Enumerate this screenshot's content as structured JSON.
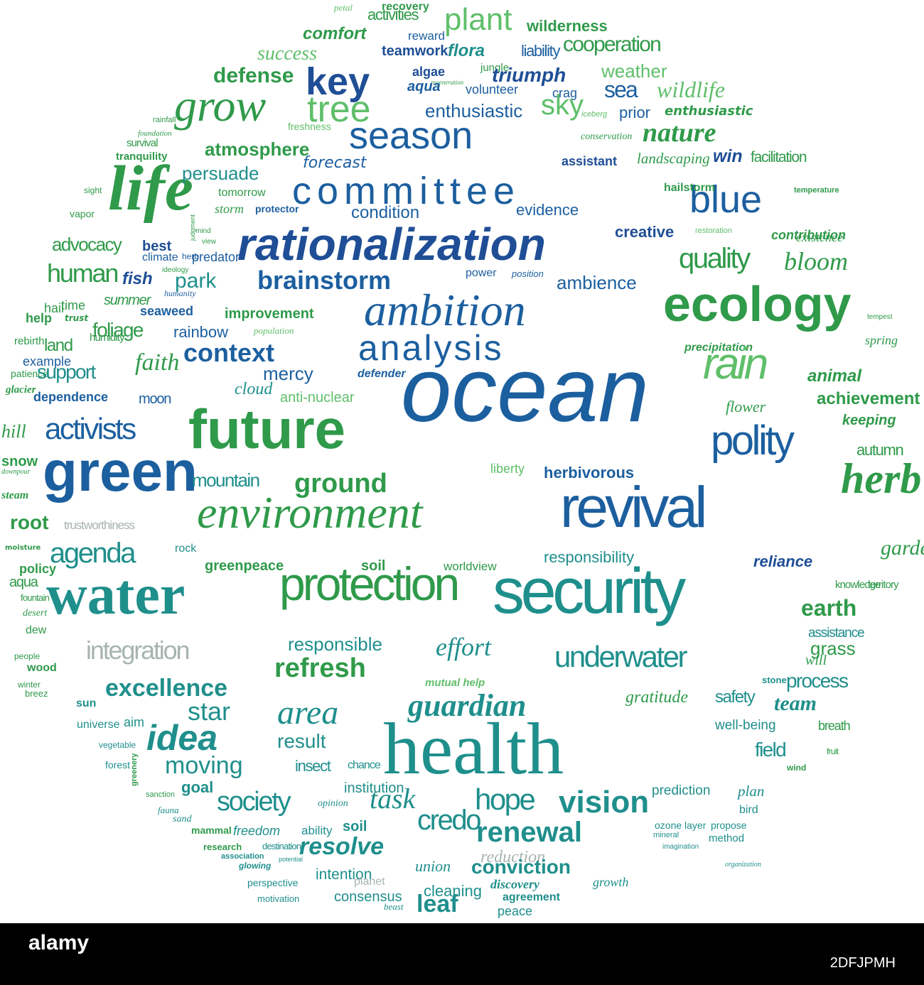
{
  "footer": {
    "watermark": "alamy",
    "image_id": "2DFJPMH"
  },
  "colors": {
    "dark_blue": "#1f4e96",
    "blue": "#1c5f9f",
    "mid_blue": "#237c9c",
    "teal": "#1f8f8c",
    "green": "#2f9a4a",
    "bright_green": "#2db34a",
    "light_green": "#5fbf6a",
    "gray": "#a7b4b0"
  },
  "words": [
    {
      "t": "petal",
      "c": "light_green",
      "s": 13,
      "it": 1
    },
    {
      "t": "recovery",
      "c": "green",
      "s": 16,
      "w": 1
    },
    {
      "t": "activities",
      "c": "green",
      "s": 22
    },
    {
      "t": "plant",
      "c": "light_green",
      "s": 44
    },
    {
      "t": "wilderness",
      "c": "green",
      "s": 22,
      "w": 1
    },
    {
      "t": "comfort",
      "c": "green",
      "s": 24,
      "w": 1,
      "it": 1
    },
    {
      "t": "reward",
      "c": "blue",
      "s": 17
    },
    {
      "t": "success",
      "c": "light_green",
      "s": 28,
      "it": 1
    },
    {
      "t": "teamwork",
      "c": "dark_blue",
      "s": 20,
      "w": 1
    },
    {
      "t": "flora",
      "c": "teal",
      "s": 24,
      "w": 1,
      "it": 1
    },
    {
      "t": "liability",
      "c": "blue",
      "s": 22
    },
    {
      "t": "cooperation",
      "c": "green",
      "s": 30
    },
    {
      "t": "jungle",
      "c": "green",
      "s": 15
    },
    {
      "t": "defense",
      "c": "green",
      "s": 30,
      "w": 1
    },
    {
      "t": "key",
      "c": "dark_blue",
      "s": 54,
      "w": 1
    },
    {
      "t": "algae",
      "c": "dark_blue",
      "s": 18,
      "w": 1
    },
    {
      "t": "regeneration",
      "c": "green",
      "s": 9,
      "it": 1
    },
    {
      "t": "aqua",
      "c": "blue",
      "s": 20,
      "w": 1,
      "it": 1
    },
    {
      "t": "triumph",
      "c": "dark_blue",
      "s": 28,
      "w": 1,
      "it": 1
    },
    {
      "t": "weather",
      "c": "light_green",
      "s": 26
    },
    {
      "t": "volunteer",
      "c": "blue",
      "s": 18
    },
    {
      "t": "crag",
      "c": "blue",
      "s": 18
    },
    {
      "t": "sea",
      "c": "blue",
      "s": 32
    },
    {
      "t": "wildlife",
      "c": "light_green",
      "s": 32,
      "it": 1
    },
    {
      "t": "grow",
      "c": "green",
      "s": 64,
      "it": 1
    },
    {
      "t": "tree",
      "c": "light_green",
      "s": 52
    },
    {
      "t": "enthusiastic",
      "c": "blue",
      "s": 26
    },
    {
      "t": "sky",
      "c": "light_green",
      "s": 40
    },
    {
      "t": "iceberg",
      "c": "light_green",
      "s": 11,
      "it": 1
    },
    {
      "t": "prior",
      "c": "blue",
      "s": 22
    },
    {
      "t": "enthusiastic",
      "c": "green",
      "s": 18,
      "w": 1,
      "it": 1
    },
    {
      "t": "rainfall",
      "c": "green",
      "s": 11
    },
    {
      "t": "freshness",
      "c": "light_green",
      "s": 14
    },
    {
      "t": "foundation",
      "c": "green",
      "s": 11,
      "it": 1
    },
    {
      "t": "survival",
      "c": "green",
      "s": 15
    },
    {
      "t": "season",
      "c": "blue",
      "s": 54
    },
    {
      "t": "conservation",
      "c": "green",
      "s": 14,
      "it": 1
    },
    {
      "t": "nature",
      "c": "green",
      "s": 38,
      "w": 1,
      "it": 1
    },
    {
      "t": "tranquility",
      "c": "green",
      "s": 15,
      "w": 1
    },
    {
      "t": "atmosphere",
      "c": "green",
      "s": 26,
      "w": 1
    },
    {
      "t": "assistant",
      "c": "dark_blue",
      "s": 18,
      "w": 1
    },
    {
      "t": "landscaping",
      "c": "green",
      "s": 21,
      "it": 1
    },
    {
      "t": "win",
      "c": "dark_blue",
      "s": 25,
      "w": 1,
      "it": 1
    },
    {
      "t": "facilitation",
      "c": "green",
      "s": 21
    },
    {
      "t": "forecast",
      "c": "blue",
      "s": 22,
      "it": 1
    },
    {
      "t": "life",
      "c": "green",
      "s": 90,
      "w": 1,
      "it": 1
    },
    {
      "t": "persuade",
      "c": "teal",
      "s": 26
    },
    {
      "t": "committee",
      "c": "blue",
      "s": 54,
      "ls": 8
    },
    {
      "t": "blue",
      "c": "blue",
      "s": 54
    },
    {
      "t": "temperature",
      "c": "green",
      "s": 11,
      "w": 1
    },
    {
      "t": "hailstorm",
      "c": "green",
      "s": 16,
      "w": 1
    },
    {
      "t": "sight",
      "c": "green",
      "s": 12
    },
    {
      "t": "tomorrow",
      "c": "green",
      "s": 16
    },
    {
      "t": "storm",
      "c": "green",
      "s": 18,
      "it": 1
    },
    {
      "t": "vapor",
      "c": "green",
      "s": 14
    },
    {
      "t": "protector",
      "c": "blue",
      "s": 14,
      "w": 1
    },
    {
      "t": "condition",
      "c": "blue",
      "s": 24
    },
    {
      "t": "evidence",
      "c": "blue",
      "s": 22
    },
    {
      "t": "creative",
      "c": "dark_blue",
      "s": 22,
      "w": 1
    },
    {
      "t": "existence",
      "c": "green",
      "s": 18,
      "it": 1
    },
    {
      "t": "mind",
      "c": "green",
      "s": 10
    },
    {
      "t": "restoration",
      "c": "light_green",
      "s": 11
    },
    {
      "t": "contribution",
      "c": "green",
      "s": 18,
      "w": 1,
      "it": 1
    },
    {
      "t": "advocacy",
      "c": "green",
      "s": 26
    },
    {
      "t": "rationalization",
      "c": "dark_blue",
      "s": 64,
      "w": 1,
      "it": 1
    },
    {
      "t": "judgment",
      "c": "green",
      "s": 9
    },
    {
      "t": "best",
      "c": "dark_blue",
      "s": 20,
      "w": 1
    },
    {
      "t": "view",
      "c": "green",
      "s": 10
    },
    {
      "t": "climate",
      "c": "blue",
      "s": 16
    },
    {
      "t": "herb",
      "c": "blue",
      "s": 12
    },
    {
      "t": "predator",
      "c": "blue",
      "s": 18
    },
    {
      "t": "quality",
      "c": "green",
      "s": 40
    },
    {
      "t": "bloom",
      "c": "green",
      "s": 36,
      "it": 1
    },
    {
      "t": "human",
      "c": "green",
      "s": 36
    },
    {
      "t": "ideology",
      "c": "green",
      "s": 10
    },
    {
      "t": "fish",
      "c": "dark_blue",
      "s": 24,
      "w": 1,
      "it": 1
    },
    {
      "t": "park",
      "c": "teal",
      "s": 30
    },
    {
      "t": "brainstorm",
      "c": "blue",
      "s": 36,
      "w": 1
    },
    {
      "t": "power",
      "c": "blue",
      "s": 16
    },
    {
      "t": "position",
      "c": "blue",
      "s": 13,
      "it": 1
    },
    {
      "t": "ambience",
      "c": "blue",
      "s": 26
    },
    {
      "t": "humanity",
      "c": "blue",
      "s": 12,
      "it": 1
    },
    {
      "t": "hail",
      "c": "green",
      "s": 18
    },
    {
      "t": "time",
      "c": "green",
      "s": 18
    },
    {
      "t": "summer",
      "c": "green",
      "s": 20,
      "it": 1
    },
    {
      "t": "seaweed",
      "c": "blue",
      "s": 18,
      "w": 1
    },
    {
      "t": "improvement",
      "c": "green",
      "s": 20,
      "w": 1
    },
    {
      "t": "ambition",
      "c": "blue",
      "s": 64,
      "it": 1
    },
    {
      "t": "ecology",
      "c": "green",
      "s": 70,
      "w": 1
    },
    {
      "t": "tempest",
      "c": "green",
      "s": 10
    },
    {
      "t": "help",
      "c": "green",
      "s": 18,
      "w": 1
    },
    {
      "t": "trust",
      "c": "green",
      "s": 12,
      "w": 1,
      "it": 1
    },
    {
      "t": "foliage",
      "c": "green",
      "s": 28
    },
    {
      "t": "rainbow",
      "c": "blue",
      "s": 22
    },
    {
      "t": "population",
      "c": "light_green",
      "s": 13,
      "it": 1
    },
    {
      "t": "rebirth",
      "c": "green",
      "s": 15
    },
    {
      "t": "land",
      "c": "green",
      "s": 24
    },
    {
      "t": "humidity",
      "c": "green",
      "s": 15
    },
    {
      "t": "context",
      "c": "blue",
      "s": 36,
      "w": 1
    },
    {
      "t": "analysis",
      "c": "blue",
      "s": 50,
      "ls": 3
    },
    {
      "t": "precipitation",
      "c": "green",
      "s": 16,
      "w": 1,
      "it": 1
    },
    {
      "t": "spring",
      "c": "green",
      "s": 18,
      "it": 1
    },
    {
      "t": "example",
      "c": "blue",
      "s": 18
    },
    {
      "t": "faith",
      "c": "green",
      "s": 34,
      "it": 1
    },
    {
      "t": "patience",
      "c": "green",
      "s": 14
    },
    {
      "t": "support",
      "c": "teal",
      "s": 28
    },
    {
      "t": "mercy",
      "c": "blue",
      "s": 26
    },
    {
      "t": "defender",
      "c": "blue",
      "s": 16,
      "w": 1,
      "it": 1
    },
    {
      "t": "ocean",
      "c": "blue",
      "s": 128,
      "it": 1
    },
    {
      "t": "rain",
      "c": "light_green",
      "s": 62,
      "it": 1
    },
    {
      "t": "animal",
      "c": "green",
      "s": 24,
      "w": 1,
      "it": 1
    },
    {
      "t": "glacier",
      "c": "green",
      "s": 15,
      "w": 1,
      "it": 1
    },
    {
      "t": "dependence",
      "c": "blue",
      "s": 18,
      "w": 1
    },
    {
      "t": "cloud",
      "c": "teal",
      "s": 24,
      "it": 1
    },
    {
      "t": "moon",
      "c": "blue",
      "s": 20
    },
    {
      "t": "anti-nuclear",
      "c": "light_green",
      "s": 20
    },
    {
      "t": "achievement",
      "c": "green",
      "s": 24,
      "w": 1
    },
    {
      "t": "flower",
      "c": "green",
      "s": 22,
      "it": 1
    },
    {
      "t": "keeping",
      "c": "green",
      "s": 20,
      "w": 1,
      "it": 1
    },
    {
      "t": "activists",
      "c": "blue",
      "s": 42
    },
    {
      "t": "future",
      "c": "green",
      "s": 78,
      "w": 1
    },
    {
      "t": "hill",
      "c": "green",
      "s": 26,
      "it": 1
    },
    {
      "t": "polity",
      "c": "blue",
      "s": 58
    },
    {
      "t": "autumn",
      "c": "green",
      "s": 22
    },
    {
      "t": "snow",
      "c": "green",
      "s": 20,
      "w": 1
    },
    {
      "t": "green",
      "c": "blue",
      "s": 80,
      "w": 1
    },
    {
      "t": "liberty",
      "c": "light_green",
      "s": 18
    },
    {
      "t": "herbivorous",
      "c": "blue",
      "s": 22,
      "w": 1
    },
    {
      "t": "downpour",
      "c": "green",
      "s": 10,
      "it": 1
    },
    {
      "t": "mountain",
      "c": "teal",
      "s": 26
    },
    {
      "t": "ground",
      "c": "green",
      "s": 38,
      "w": 1
    },
    {
      "t": "herb",
      "c": "green",
      "s": 60,
      "w": 1,
      "it": 1
    },
    {
      "t": "steam",
      "c": "green",
      "s": 16,
      "w": 1,
      "it": 1
    },
    {
      "t": "environment",
      "c": "green",
      "s": 64,
      "it": 1
    },
    {
      "t": "revival",
      "c": "blue",
      "s": 82
    },
    {
      "t": "root",
      "c": "green",
      "s": 28,
      "w": 1
    },
    {
      "t": "trustworthiness",
      "c": "gray",
      "s": 17
    },
    {
      "t": "moisture",
      "c": "green",
      "s": 10,
      "w": 1
    },
    {
      "t": "agenda",
      "c": "teal",
      "s": 40
    },
    {
      "t": "rock",
      "c": "teal",
      "s": 16
    },
    {
      "t": "responsibility",
      "c": "teal",
      "s": 22
    },
    {
      "t": "garden",
      "c": "green",
      "s": 30,
      "it": 1
    },
    {
      "t": "policy",
      "c": "green",
      "s": 18,
      "w": 1
    },
    {
      "t": "greenpeace",
      "c": "green",
      "s": 20,
      "w": 1
    },
    {
      "t": "soil",
      "c": "green",
      "s": 20,
      "w": 1
    },
    {
      "t": "worldview",
      "c": "green",
      "s": 17
    },
    {
      "t": "reliance",
      "c": "dark_blue",
      "s": 22,
      "w": 1,
      "it": 1
    },
    {
      "t": "aqua",
      "c": "green",
      "s": 20
    },
    {
      "t": "water",
      "c": "teal",
      "s": 80,
      "w": 1
    },
    {
      "t": "protection",
      "c": "green",
      "s": 66
    },
    {
      "t": "security",
      "c": "teal",
      "s": 90
    },
    {
      "t": "knowledge",
      "c": "green",
      "s": 15
    },
    {
      "t": "territory",
      "c": "green",
      "s": 15
    },
    {
      "t": "fountain",
      "c": "green",
      "s": 13
    },
    {
      "t": "desert",
      "c": "green",
      "s": 14,
      "it": 1
    },
    {
      "t": "earth",
      "c": "green",
      "s": 32,
      "w": 1
    },
    {
      "t": "assistance",
      "c": "teal",
      "s": 19
    },
    {
      "t": "dew",
      "c": "green",
      "s": 16
    },
    {
      "t": "integration",
      "c": "gray",
      "s": 36
    },
    {
      "t": "responsible",
      "c": "teal",
      "s": 26
    },
    {
      "t": "effort",
      "c": "teal",
      "s": 36,
      "it": 1
    },
    {
      "t": "grass",
      "c": "green",
      "s": 26
    },
    {
      "t": "people",
      "c": "green",
      "s": 12
    },
    {
      "t": "will",
      "c": "green",
      "s": 20,
      "it": 1
    },
    {
      "t": "underwater",
      "c": "teal",
      "s": 42
    },
    {
      "t": "wood",
      "c": "green",
      "s": 16,
      "w": 1
    },
    {
      "t": "refresh",
      "c": "green",
      "s": 38,
      "w": 1
    },
    {
      "t": "process",
      "c": "teal",
      "s": 28
    },
    {
      "t": "stone",
      "c": "teal",
      "s": 13,
      "w": 1
    },
    {
      "t": "excellence",
      "c": "teal",
      "s": 34,
      "w": 1
    },
    {
      "t": "mutual help",
      "c": "light_green",
      "s": 15,
      "w": 1,
      "it": 1
    },
    {
      "t": "winter",
      "c": "green",
      "s": 12
    },
    {
      "t": "gratitude",
      "c": "green",
      "s": 24,
      "it": 1
    },
    {
      "t": "safety",
      "c": "teal",
      "s": 24
    },
    {
      "t": "breez",
      "c": "green",
      "s": 13
    },
    {
      "t": "sun",
      "c": "teal",
      "s": 16,
      "w": 1
    },
    {
      "t": "star",
      "c": "teal",
      "s": 36
    },
    {
      "t": "guardian",
      "c": "teal",
      "s": 44,
      "w": 1,
      "it": 1
    },
    {
      "t": "team",
      "c": "teal",
      "s": 30,
      "w": 1,
      "it": 1
    },
    {
      "t": "universe",
      "c": "teal",
      "s": 16
    },
    {
      "t": "area",
      "c": "teal",
      "s": 48,
      "it": 1
    },
    {
      "t": "aim",
      "c": "teal",
      "s": 18
    },
    {
      "t": "well-being",
      "c": "teal",
      "s": 19
    },
    {
      "t": "breath",
      "c": "green",
      "s": 18
    },
    {
      "t": "idea",
      "c": "teal",
      "s": 50,
      "w": 1,
      "it": 1
    },
    {
      "t": "vegetable",
      "c": "teal",
      "s": 12
    },
    {
      "t": "result",
      "c": "teal",
      "s": 28
    },
    {
      "t": "health",
      "c": "teal",
      "s": 104
    },
    {
      "t": "field",
      "c": "teal",
      "s": 28
    },
    {
      "t": "fruit",
      "c": "green",
      "s": 12
    },
    {
      "t": "forest",
      "c": "teal",
      "s": 14
    },
    {
      "t": "moving",
      "c": "teal",
      "s": 34
    },
    {
      "t": "insect",
      "c": "teal",
      "s": 22
    },
    {
      "t": "chance",
      "c": "teal",
      "s": 16
    },
    {
      "t": "wind",
      "c": "green",
      "s": 12,
      "w": 1
    },
    {
      "t": "greenery",
      "c": "green",
      "s": 11,
      "w": 1
    },
    {
      "t": "goal",
      "c": "teal",
      "s": 22,
      "w": 1
    },
    {
      "t": "institution",
      "c": "teal",
      "s": 20
    },
    {
      "t": "prediction",
      "c": "teal",
      "s": 19
    },
    {
      "t": "plan",
      "c": "teal",
      "s": 21,
      "it": 1
    },
    {
      "t": "sanction",
      "c": "green",
      "s": 11
    },
    {
      "t": "society",
      "c": "teal",
      "s": 38
    },
    {
      "t": "opinion",
      "c": "teal",
      "s": 14,
      "it": 1
    },
    {
      "t": "task",
      "c": "teal",
      "s": 40,
      "it": 1
    },
    {
      "t": "hope",
      "c": "teal",
      "s": 42
    },
    {
      "t": "vision",
      "c": "teal",
      "s": 44,
      "w": 1
    },
    {
      "t": "fauna",
      "c": "teal",
      "s": 13,
      "it": 1
    },
    {
      "t": "sand",
      "c": "teal",
      "s": 14,
      "it": 1
    },
    {
      "t": "bird",
      "c": "teal",
      "s": 16
    },
    {
      "t": "mammal",
      "c": "green",
      "s": 14,
      "w": 1
    },
    {
      "t": "freedom",
      "c": "teal",
      "s": 18,
      "it": 1
    },
    {
      "t": "ability",
      "c": "teal",
      "s": 17
    },
    {
      "t": "soil",
      "c": "teal",
      "s": 20,
      "w": 1
    },
    {
      "t": "credo",
      "c": "teal",
      "s": 40
    },
    {
      "t": "renewal",
      "c": "teal",
      "s": 40,
      "w": 1
    },
    {
      "t": "ozone layer",
      "c": "teal",
      "s": 14
    },
    {
      "t": "propose",
      "c": "teal",
      "s": 14
    },
    {
      "t": "research",
      "c": "green",
      "s": 13,
      "w": 1
    },
    {
      "t": "destination",
      "c": "teal",
      "s": 13
    },
    {
      "t": "resolve",
      "c": "teal",
      "s": 34,
      "w": 1,
      "it": 1
    },
    {
      "t": "mineral",
      "c": "teal",
      "s": 11
    },
    {
      "t": "method",
      "c": "teal",
      "s": 15
    },
    {
      "t": "association",
      "c": "teal",
      "s": 11,
      "w": 1
    },
    {
      "t": "potential",
      "c": "teal",
      "s": 9
    },
    {
      "t": "reduction",
      "c": "gray",
      "s": 24,
      "it": 1
    },
    {
      "t": "imagination",
      "c": "teal",
      "s": 10
    },
    {
      "t": "glowing",
      "c": "teal",
      "s": 12,
      "w": 1,
      "it": 1
    },
    {
      "t": "union",
      "c": "teal",
      "s": 22,
      "it": 1
    },
    {
      "t": "conviction",
      "c": "teal",
      "s": 28,
      "w": 1
    },
    {
      "t": "organization",
      "c": "teal",
      "s": 10,
      "it": 1
    },
    {
      "t": "perspective",
      "c": "teal",
      "s": 14
    },
    {
      "t": "intention",
      "c": "teal",
      "s": 21
    },
    {
      "t": "planet",
      "c": "gray",
      "s": 16
    },
    {
      "t": "discovery",
      "c": "teal",
      "s": 18,
      "w": 1,
      "it": 1
    },
    {
      "t": "growth",
      "c": "teal",
      "s": 18,
      "it": 1
    },
    {
      "t": "motivation",
      "c": "teal",
      "s": 13
    },
    {
      "t": "consensus",
      "c": "teal",
      "s": 20
    },
    {
      "t": "cleaning",
      "c": "teal",
      "s": 22
    },
    {
      "t": "agreement",
      "c": "teal",
      "s": 16,
      "w": 1
    },
    {
      "t": "beast",
      "c": "teal",
      "s": 13,
      "it": 1
    },
    {
      "t": "leaf",
      "c": "teal",
      "s": 34,
      "w": 1
    },
    {
      "t": "peace",
      "c": "teal",
      "s": 18
    }
  ]
}
